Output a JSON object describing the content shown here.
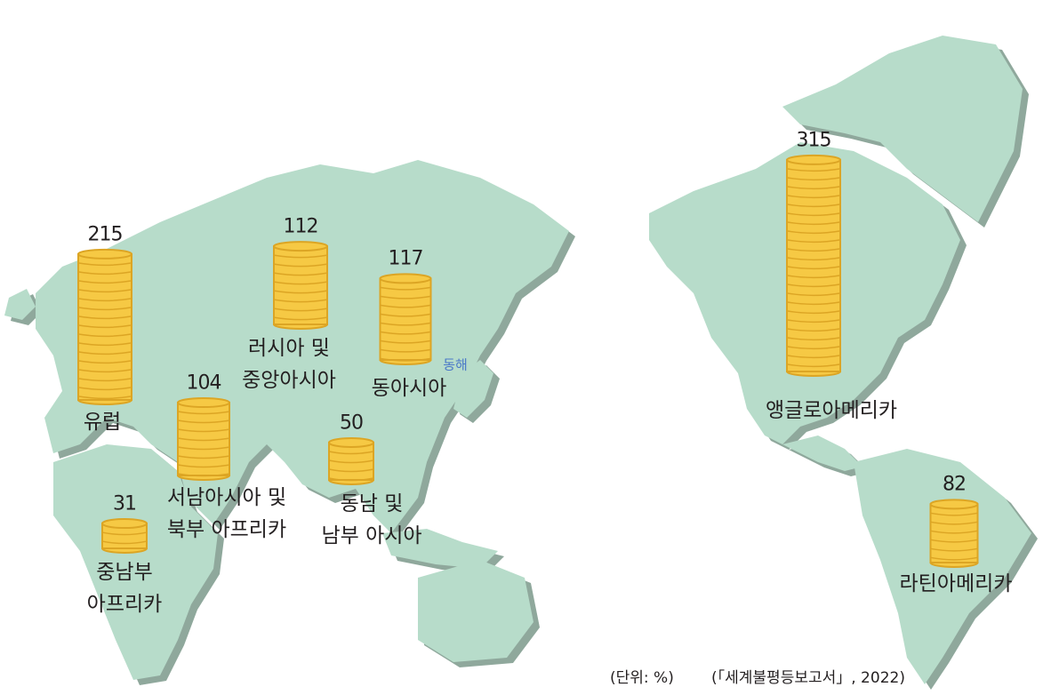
{
  "unit_note": "(단위: %)",
  "source_note": "(「세계불평등보고서」, 2022)",
  "sea_label": "동해",
  "colors": {
    "land": "#b7dcca",
    "land_shadow": "#8fa89c",
    "coin": "#f6c944",
    "coin_edge": "#dca524"
  },
  "regions": [
    {
      "name_lines": [
        "유럽"
      ],
      "value": "215"
    },
    {
      "name_lines": [
        "러시아 및",
        "중앙아시아"
      ],
      "value": "112"
    },
    {
      "name_lines": [
        "동아시아"
      ],
      "value": "117"
    },
    {
      "name_lines": [
        "서남아시아 및",
        "북부 아프리카"
      ],
      "value": "104"
    },
    {
      "name_lines": [
        "동남 및",
        "남부 아시아"
      ],
      "value": "50"
    },
    {
      "name_lines": [
        "중남부",
        "아프리카"
      ],
      "value": "31"
    },
    {
      "name_lines": [
        "앵글로아메리카"
      ],
      "value": "315"
    },
    {
      "name_lines": [
        "라틴아메리카"
      ],
      "value": "82"
    }
  ]
}
